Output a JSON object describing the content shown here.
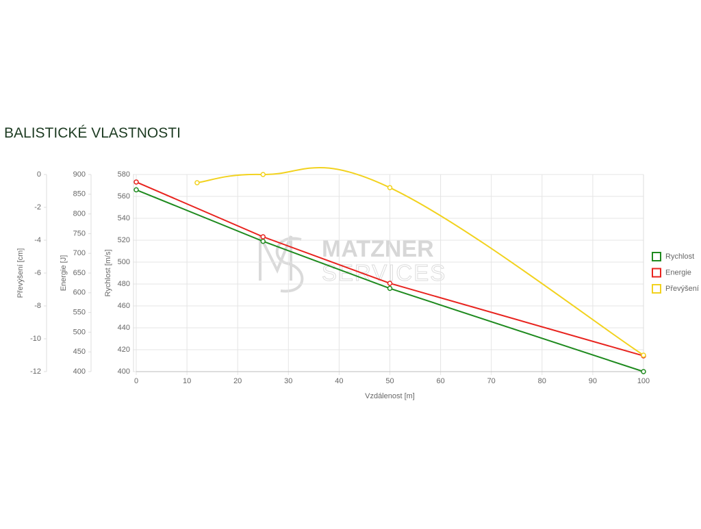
{
  "chart_data": {
    "type": "line",
    "title": "BALISTICKÉ VLASTNOSTI",
    "xlabel": "Vzdálenost [m]",
    "xlim": [
      0,
      100
    ],
    "xticks": [
      0,
      10,
      20,
      30,
      40,
      50,
      60,
      70,
      80,
      90,
      100
    ],
    "ylabel": "Rychlost [m/s]",
    "ylim": [
      400,
      580
    ],
    "yticks": [
      400,
      420,
      440,
      460,
      480,
      500,
      520,
      540,
      560,
      580
    ],
    "y2label": "Energie [J]",
    "y2lim": [
      400,
      900
    ],
    "y2ticks": [
      400,
      450,
      500,
      550,
      600,
      650,
      700,
      750,
      800,
      850,
      900
    ],
    "y3label": "Převýšení [cm]",
    "y3lim": [
      -12,
      0
    ],
    "y3ticks": [
      -12,
      -10,
      -8,
      -6,
      -4,
      -2,
      0
    ],
    "grid": true,
    "legend": "right",
    "series": [
      {
        "name": "Rychlost",
        "color": "#1e8a1e",
        "axis": "y",
        "x": [
          0,
          25,
          50,
          100
        ],
        "values": [
          566,
          519,
          476,
          400
        ]
      },
      {
        "name": "Energie",
        "color": "#e8231e",
        "axis": "y2",
        "x": [
          0,
          25,
          50,
          100
        ],
        "values": [
          881,
          742,
          624,
          440
        ]
      },
      {
        "name": "Převýšení",
        "color": "#f2d21e",
        "axis": "y3",
        "smooth": true,
        "x": [
          12,
          25,
          50,
          100
        ],
        "values": [
          -0.5,
          0,
          -0.8,
          -11
        ]
      }
    ]
  },
  "watermark": {
    "line1": "MATZNER",
    "line2": "SERVICES"
  }
}
